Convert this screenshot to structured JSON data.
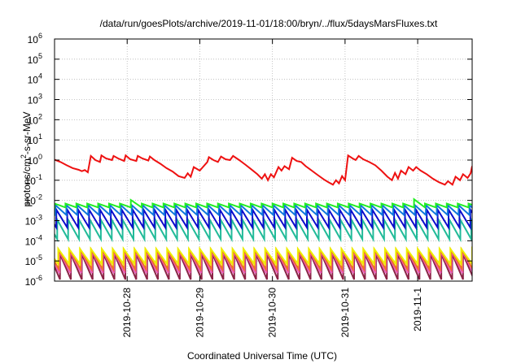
{
  "chart_data": {
    "type": "line",
    "title": "/data/run/goesPlots/archive/2019-11-01/18:00/bryn/../flux/5daysMarsFluxes.txt",
    "xlabel": "Coordinated Universal Time (UTC)",
    "ylabel": {
      "prefix": "protons/cm",
      "sup": "2",
      "suffix": "-s-sr-MeV"
    },
    "y_scale": "log",
    "ylim": [
      1e-06,
      1000000.0
    ],
    "y_ticks": [
      {
        "exp": "-6"
      },
      {
        "exp": "-5"
      },
      {
        "exp": "-4"
      },
      {
        "exp": "-3"
      },
      {
        "exp": "-2"
      },
      {
        "exp": "-1"
      },
      {
        "exp": "0"
      },
      {
        "exp": "1"
      },
      {
        "exp": "2"
      },
      {
        "exp": "3"
      },
      {
        "exp": "4"
      },
      {
        "exp": "5"
      },
      {
        "exp": "6"
      }
    ],
    "xlim": [
      "2019-10-27T00:00",
      "2019-11-01T18:00"
    ],
    "x_ticks": [
      "2019-10-28",
      "2019-10-29",
      "2019-10-30",
      "2019-10-31",
      "2019-11-1"
    ],
    "x_tick_dates": [
      "2019-10-28T00:00",
      "2019-10-29T00:00",
      "2019-10-30T00:00",
      "2019-10-31T00:00",
      "2019-11-01T00:00"
    ],
    "grid": true,
    "series": [
      {
        "color": "#ee1111",
        "pattern": "smooth",
        "points": [
          [
            "2019-10-27T00:00",
            1.05
          ],
          [
            "2019-10-27T02:00",
            0.8
          ],
          [
            "2019-10-27T04:00",
            0.55
          ],
          [
            "2019-10-27T06:00",
            0.4
          ],
          [
            "2019-10-27T08:00",
            0.33
          ],
          [
            "2019-10-27T09:00",
            0.28
          ],
          [
            "2019-10-27T10:00",
            0.32
          ],
          [
            "2019-10-27T11:00",
            0.25
          ],
          [
            "2019-10-27T12:00",
            1.6
          ],
          [
            "2019-10-27T13:30",
            1.0
          ],
          [
            "2019-10-27T15:00",
            0.8
          ],
          [
            "2019-10-27T15:30",
            1.7
          ],
          [
            "2019-10-27T17:00",
            1.2
          ],
          [
            "2019-10-27T19:00",
            1.0
          ],
          [
            "2019-10-27T19:30",
            1.6
          ],
          [
            "2019-10-27T21:00",
            1.2
          ],
          [
            "2019-10-27T23:00",
            0.9
          ],
          [
            "2019-10-27T23:30",
            1.7
          ],
          [
            "2019-10-28T01:00",
            1.1
          ],
          [
            "2019-10-28T03:00",
            0.9
          ],
          [
            "2019-10-28T03:30",
            1.6
          ],
          [
            "2019-10-28T05:00",
            1.2
          ],
          [
            "2019-10-28T07:00",
            0.95
          ],
          [
            "2019-10-28T07:30",
            1.5
          ],
          [
            "2019-10-28T09:00",
            1.0
          ],
          [
            "2019-10-28T11:00",
            0.65
          ],
          [
            "2019-10-28T13:00",
            0.4
          ],
          [
            "2019-10-28T15:00",
            0.27
          ],
          [
            "2019-10-28T17:00",
            0.16
          ],
          [
            "2019-10-28T19:00",
            0.13
          ],
          [
            "2019-10-28T20:00",
            0.22
          ],
          [
            "2019-10-28T21:00",
            0.15
          ],
          [
            "2019-10-28T22:00",
            0.45
          ],
          [
            "2019-10-29T00:00",
            0.3
          ],
          [
            "2019-10-29T01:00",
            0.45
          ],
          [
            "2019-10-29T02:30",
            0.8
          ],
          [
            "2019-10-29T03:00",
            1.4
          ],
          [
            "2019-10-29T04:30",
            1.0
          ],
          [
            "2019-10-29T06:00",
            0.8
          ],
          [
            "2019-10-29T07:00",
            1.5
          ],
          [
            "2019-10-29T08:30",
            1.1
          ],
          [
            "2019-10-29T10:00",
            1.0
          ],
          [
            "2019-10-29T11:00",
            1.6
          ],
          [
            "2019-10-29T13:00",
            1.0
          ],
          [
            "2019-10-29T15:00",
            0.6
          ],
          [
            "2019-10-29T17:00",
            0.35
          ],
          [
            "2019-10-29T19:00",
            0.2
          ],
          [
            "2019-10-29T20:30",
            0.12
          ],
          [
            "2019-10-29T21:30",
            0.2
          ],
          [
            "2019-10-29T22:30",
            0.1
          ],
          [
            "2019-10-29T23:30",
            0.2
          ],
          [
            "2019-10-30T00:30",
            0.14
          ],
          [
            "2019-10-30T02:00",
            0.45
          ],
          [
            "2019-10-30T03:00",
            0.3
          ],
          [
            "2019-10-30T04:00",
            0.5
          ],
          [
            "2019-10-30T05:30",
            0.35
          ],
          [
            "2019-10-30T06:30",
            1.3
          ],
          [
            "2019-10-30T08:00",
            0.9
          ],
          [
            "2019-10-30T09:30",
            0.8
          ],
          [
            "2019-10-30T11:00",
            0.5
          ],
          [
            "2019-10-30T13:00",
            0.3
          ],
          [
            "2019-10-30T15:00",
            0.18
          ],
          [
            "2019-10-30T17:00",
            0.11
          ],
          [
            "2019-10-30T18:30",
            0.08
          ],
          [
            "2019-10-30T20:00",
            0.06
          ],
          [
            "2019-10-30T21:00",
            0.1
          ],
          [
            "2019-10-30T22:00",
            0.07
          ],
          [
            "2019-10-30T23:00",
            0.16
          ],
          [
            "2019-10-31T00:00",
            0.1
          ],
          [
            "2019-10-31T01:00",
            1.7
          ],
          [
            "2019-10-31T02:30",
            1.2
          ],
          [
            "2019-10-31T03:30",
            1.0
          ],
          [
            "2019-10-31T04:30",
            1.6
          ],
          [
            "2019-10-31T06:00",
            1.1
          ],
          [
            "2019-10-31T08:00",
            0.8
          ],
          [
            "2019-10-31T10:00",
            0.55
          ],
          [
            "2019-10-31T12:00",
            0.3
          ],
          [
            "2019-10-31T14:00",
            0.15
          ],
          [
            "2019-10-31T15:30",
            0.1
          ],
          [
            "2019-10-31T16:30",
            0.23
          ],
          [
            "2019-10-31T17:30",
            0.12
          ],
          [
            "2019-10-31T18:30",
            0.3
          ],
          [
            "2019-10-31T20:00",
            0.2
          ],
          [
            "2019-10-31T21:00",
            0.45
          ],
          [
            "2019-10-31T22:30",
            0.3
          ],
          [
            "2019-10-31T23:30",
            0.45
          ],
          [
            "2019-11-01T01:00",
            0.3
          ],
          [
            "2019-11-01T03:00",
            0.2
          ],
          [
            "2019-11-01T05:00",
            0.12
          ],
          [
            "2019-11-01T07:00",
            0.08
          ],
          [
            "2019-11-01T09:00",
            0.06
          ],
          [
            "2019-11-01T10:00",
            0.09
          ],
          [
            "2019-11-01T11:30",
            0.06
          ],
          [
            "2019-11-01T12:30",
            0.15
          ],
          [
            "2019-11-01T14:00",
            0.1
          ],
          [
            "2019-11-01T15:00",
            0.2
          ],
          [
            "2019-11-01T16:30",
            0.13
          ],
          [
            "2019-11-01T17:30",
            0.22
          ],
          [
            "2019-11-01T18:00",
            0.5
          ]
        ]
      },
      {
        "color": "#22ee22",
        "pattern": "sawtooth",
        "min_value": 0.0045,
        "max_value": 0.007,
        "period_hours": 3.6,
        "phase_hours": 0.0,
        "jumps": [
          {
            "time": "2019-10-28T00:00",
            "peak": 0.0105
          },
          {
            "time": "2019-11-01T00:00",
            "peak": 0.0115
          }
        ]
      },
      {
        "color": "#1177dd",
        "pattern": "sawtooth",
        "min_value": 0.0019,
        "max_value": 0.0058,
        "period_hours": 3.6,
        "phase_hours": 0.3,
        "jumps": []
      },
      {
        "color": "#0c0ccc",
        "pattern": "sawtooth",
        "min_value": 0.00045,
        "max_value": 0.0035,
        "period_hours": 3.6,
        "phase_hours": 0.6,
        "jumps": []
      },
      {
        "color": "#22bb99",
        "pattern": "sawtooth",
        "min_value": 0.00012,
        "max_value": 0.0011,
        "period_hours": 3.6,
        "phase_hours": 0.9,
        "jumps": []
      },
      {
        "color": "#eeee00",
        "pattern": "sawtooth",
        "min_value": 7e-06,
        "max_value": 4e-05,
        "period_hours": 3.6,
        "phase_hours": 1.2,
        "jumps": []
      },
      {
        "color": "#ee7722",
        "pattern": "sawtooth",
        "min_value": 4e-06,
        "max_value": 3.5e-05,
        "period_hours": 3.6,
        "phase_hours": 1.4,
        "jumps": []
      },
      {
        "color": "#ee55bb",
        "pattern": "sawtooth",
        "min_value": 2.5e-06,
        "max_value": 3e-05,
        "period_hours": 3.6,
        "phase_hours": 1.6,
        "jumps": []
      },
      {
        "color": "#8b2346",
        "pattern": "sawtooth",
        "min_value": 1.2e-06,
        "max_value": 2.2e-05,
        "period_hours": 3.6,
        "phase_hours": 1.8,
        "jumps": []
      }
    ]
  }
}
